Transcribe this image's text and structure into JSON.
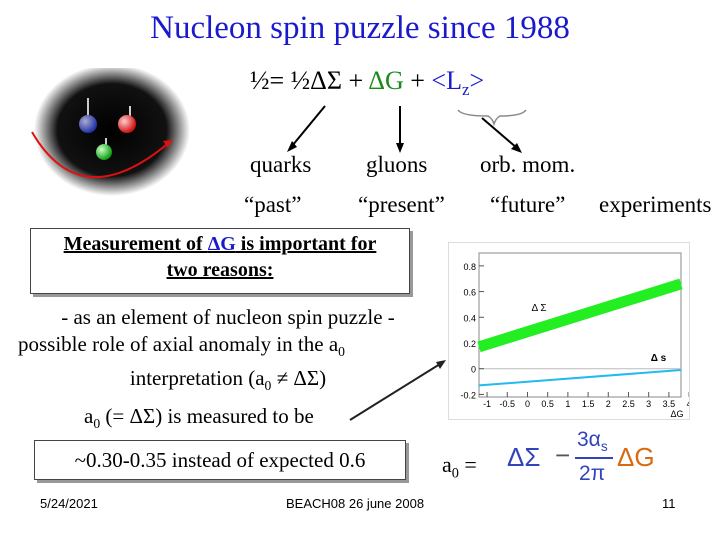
{
  "slide": {
    "title": "Nucleon spin puzzle since 1988",
    "formula": {
      "lhs": "½= ½ΔΣ",
      "plus1": " + ",
      "dg": "ΔG",
      "plus2": " + ",
      "lz_open": "<L",
      "lz_sub": "z",
      "lz_close": ">"
    },
    "labels": {
      "quarks": "quarks",
      "gluons": "gluons",
      "orb_mom": "orb. mom.",
      "past": "“past”",
      "present": "“present”",
      "future": "“future”",
      "experiments": "experiments"
    },
    "box1": {
      "pre": "Measurement of ",
      "dg": "ΔG",
      "post": " is important for",
      "line2": "two reasons:"
    },
    "reasons": {
      "line1": "- as an element of nucleon spin puzzle  -",
      "line2_pre": "possible role of axial anomaly in the    a",
      "line2_sub": "0",
      "line3": "interpretation (a",
      "line3_sub": "0",
      "line3_post": " ≠ ΔΣ)"
    },
    "measured": {
      "pre": "a",
      "sub": "0",
      "post": " (= ΔΣ) is measured to be"
    },
    "box2": {
      "text": "~0.30-0.35 instead of expected 0.6"
    },
    "a0eq": {
      "a": "a",
      "sub": "0",
      "eq": " ="
    },
    "eq_formula": {
      "dsigma": "ΔΣ",
      "minus": "−",
      "num_coef": "3α",
      "num_sub": "s",
      "den": "2π",
      "dg": "ΔG"
    },
    "footer": {
      "date": "5/24/2021",
      "event": "BEACH08 26 june 2008",
      "page": "11"
    }
  },
  "colors": {
    "title_blue": "#1a1acc",
    "gluon_green": "#1a8a1a",
    "eq_blue": "#3344bb",
    "eq_orange": "#d96a10",
    "plot_green": "#22ee22",
    "plot_cyan": "#22bbee"
  },
  "chart_data": {
    "type": "line",
    "xlim": [
      -1.2,
      3.8
    ],
    "ylim": [
      -0.22,
      0.9
    ],
    "x_ticks": [
      "-1",
      "-0.5",
      "0",
      "0.5",
      "1",
      "1.5",
      "2",
      "2.5",
      "3",
      "3.5",
      "4"
    ],
    "y_ticks": [
      "0.8",
      "0.6",
      "0.4",
      "0.2",
      "0",
      "-0.2"
    ],
    "xlabel": "ΔG",
    "series": [
      {
        "name": "Δ Σ",
        "x": [
          -1.2,
          3.8
        ],
        "y": [
          0.17,
          0.66
        ]
      },
      {
        "name": "Δ s",
        "x": [
          -1.2,
          3.8
        ],
        "y": [
          -0.13,
          -0.01
        ]
      }
    ],
    "legend": [
      "Δ Σ",
      "Δ s"
    ]
  }
}
